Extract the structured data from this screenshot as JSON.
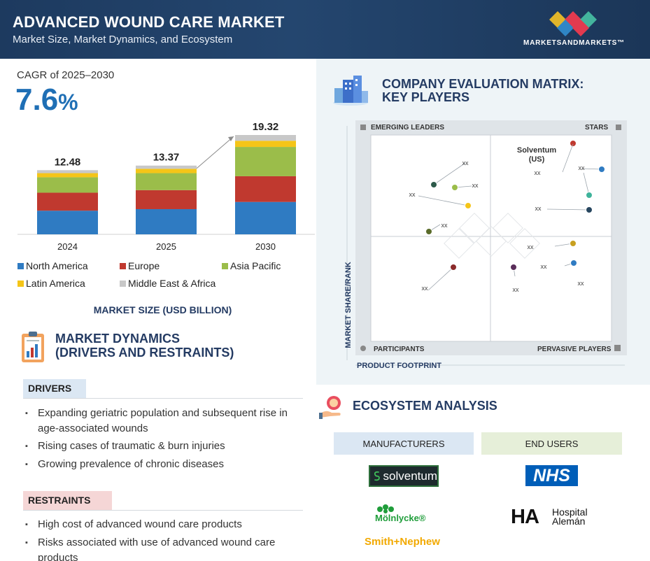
{
  "header": {
    "title": "ADVANCED WOUND CARE MARKET",
    "subtitle": "Market Size, Market Dynamics, and Ecosystem",
    "brand": "MARKETSANDMARKETS™",
    "brand_colors": [
      "#e0b52a",
      "#e23a4f",
      "#43b49d",
      "#2f86c6"
    ]
  },
  "cagr": {
    "label": "CAGR of 2025–2030",
    "value": "7.6",
    "unit": "%"
  },
  "market_size_caption": "MARKET SIZE (USD BILLION)",
  "chart_data": {
    "type": "bar",
    "stacked": true,
    "categories": [
      "2024",
      "2025",
      "2030"
    ],
    "totals": [
      12.48,
      13.37,
      19.32
    ],
    "totals_labels": [
      "12.48",
      "13.37",
      "19.32"
    ],
    "ylim": [
      0,
      19.32
    ],
    "annotation": "growth arrow from 2025 to 2030",
    "series": [
      {
        "name": "North America",
        "color": "#2f7bc2",
        "values": [
          4.6,
          4.9,
          6.3
        ]
      },
      {
        "name": "Europe",
        "color": "#c0392f",
        "values": [
          3.5,
          3.7,
          5.0
        ]
      },
      {
        "name": "Asia Pacific",
        "color": "#9bbd4a",
        "values": [
          3.0,
          3.3,
          5.7
        ]
      },
      {
        "name": "Latin America",
        "color": "#f5c518",
        "values": [
          0.8,
          0.85,
          1.2
        ]
      },
      {
        "name": "Middle East & Africa",
        "color": "#c8c8c8",
        "values": [
          0.58,
          0.62,
          1.12
        ]
      }
    ]
  },
  "market_dynamics": {
    "title_line1": "MARKET DYNAMICS",
    "title_line2": "(DRIVERS AND RESTRAINTS)",
    "drivers_label": "DRIVERS",
    "drivers": [
      "Expanding geriatric population and subsequent rise in age-associated wounds",
      "Rising cases of traumatic & burn injuries",
      "Growing prevalence of chronic diseases"
    ],
    "restraints_label": "RESTRAINTS",
    "restraints": [
      "High cost of advanced wound care products",
      "Risks associated with use of advanced wound care products"
    ]
  },
  "matrix": {
    "title_line1": "COMPANY EVALUATION MATRIX:",
    "title_line2": "KEY PLAYERS",
    "quadrants": {
      "top_left": "EMERGING LEADERS",
      "top_right": "STARS",
      "bottom_left": "PARTICIPANTS",
      "bottom_right": "PERVASIVE PLAYERS"
    },
    "y_axis": "MARKET SHARE/RANK",
    "x_axis": "PRODUCT FOOTPRINT",
    "highlight_company": "Solventum (US)",
    "highlight_line1": "Solventum",
    "highlight_line2": "(US)",
    "placeholder": "xx",
    "dot_colors": [
      "#c0392f",
      "#2f7bc2",
      "#3fb39b",
      "#27465f",
      "#2d5a4a",
      "#9bbd4a",
      "#f5c518",
      "#5a6b2a",
      "#8b2a2a",
      "#5a2d5a",
      "#c8a020"
    ]
  },
  "ecosystem": {
    "title": "ECOSYSTEM ANALYSIS",
    "manufacturers_label": "MANUFACTURERS",
    "end_users_label": "END USERS",
    "manufacturers": [
      "solventum",
      "Mölnlycke®",
      "Smith+Nephew"
    ],
    "end_users": [
      "NHS",
      "Hospital Alemán"
    ],
    "ha_mark": "HA",
    "ha_line1": "Hospital",
    "ha_line2": "Alemán"
  }
}
